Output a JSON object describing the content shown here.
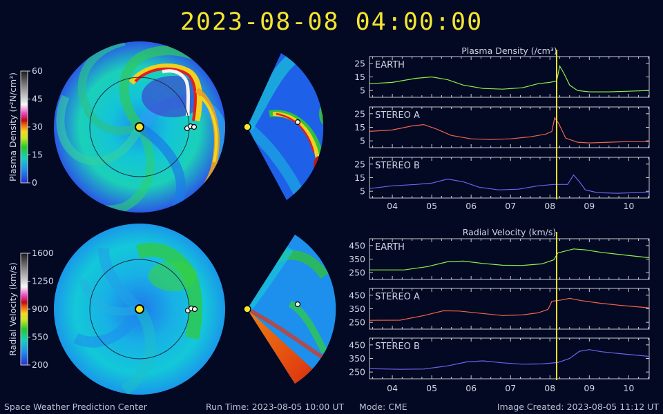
{
  "header": {
    "datetime": "2023-08-08  04:00:00"
  },
  "footer": {
    "org": "Space Weather Prediction Center",
    "run_time": "Run Time: 2023-08-05 10:00 UT",
    "mode": "Mode: CME",
    "created": "Image Created: 2023-08-05 11:12 UT"
  },
  "colorbars": {
    "density": {
      "label": "Plasma Density (r²N/cm³)",
      "ticks": [
        0,
        15,
        30,
        45,
        60
      ],
      "range": [
        0,
        60
      ]
    },
    "velocity": {
      "label": "Radial Velocity (km/s)",
      "ticks": [
        200,
        550,
        900,
        1250,
        1600
      ],
      "range": [
        200,
        1600
      ]
    }
  },
  "colors": {
    "background": "#030923",
    "headline": "#f4e52f",
    "earth_line": "#8ef04a",
    "stereo_a_line": "#f0644a",
    "stereo_b_line": "#6a64f0",
    "current_time_marker": "#f4e52f"
  },
  "chart_data": [
    {
      "type": "line",
      "title": "Plasma Density (/cm³)",
      "x_tick_labels": [
        "04",
        "05",
        "06",
        "07",
        "08",
        "09",
        "10"
      ],
      "x_ticks": [
        4,
        5,
        6,
        7,
        8,
        9,
        10
      ],
      "xlim": [
        3.42,
        10.52
      ],
      "current_time": 8.17,
      "ylim": [
        0,
        30
      ],
      "y_ticks": [
        5,
        15,
        25
      ],
      "panels": [
        {
          "name": "EARTH",
          "color_key": "earth_line",
          "points": [
            [
              3.42,
              10
            ],
            [
              4.0,
              11
            ],
            [
              4.6,
              14
            ],
            [
              5.0,
              15
            ],
            [
              5.4,
              13
            ],
            [
              5.8,
              9
            ],
            [
              6.3,
              6.5
            ],
            [
              6.8,
              6
            ],
            [
              7.3,
              7
            ],
            [
              7.7,
              10
            ],
            [
              8.0,
              11
            ],
            [
              8.17,
              12
            ],
            [
              8.25,
              23
            ],
            [
              8.35,
              18
            ],
            [
              8.5,
              9
            ],
            [
              8.7,
              5
            ],
            [
              9.0,
              4
            ],
            [
              9.5,
              4
            ],
            [
              10.0,
              4.5
            ],
            [
              10.52,
              5
            ]
          ]
        },
        {
          "name": "STEREO A",
          "color_key": "stereo_a_line",
          "points": [
            [
              3.42,
              12
            ],
            [
              4.0,
              13
            ],
            [
              4.5,
              16
            ],
            [
              4.8,
              17
            ],
            [
              5.1,
              14
            ],
            [
              5.5,
              9
            ],
            [
              6.0,
              6.5
            ],
            [
              6.5,
              6
            ],
            [
              7.0,
              6.5
            ],
            [
              7.5,
              8
            ],
            [
              7.9,
              10
            ],
            [
              8.05,
              12
            ],
            [
              8.12,
              22
            ],
            [
              8.22,
              18
            ],
            [
              8.4,
              7
            ],
            [
              8.7,
              4
            ],
            [
              9.0,
              3.5
            ],
            [
              9.5,
              4
            ],
            [
              10.0,
              4.5
            ],
            [
              10.52,
              4.5
            ]
          ]
        },
        {
          "name": "STEREO B",
          "color_key": "stereo_b_line",
          "points": [
            [
              3.42,
              7
            ],
            [
              4.0,
              9
            ],
            [
              4.6,
              10
            ],
            [
              5.0,
              11
            ],
            [
              5.4,
              14
            ],
            [
              5.8,
              12
            ],
            [
              6.2,
              8
            ],
            [
              6.7,
              6
            ],
            [
              7.2,
              6.5
            ],
            [
              7.7,
              9
            ],
            [
              8.1,
              10
            ],
            [
              8.45,
              10
            ],
            [
              8.6,
              17
            ],
            [
              8.75,
              12
            ],
            [
              8.9,
              6
            ],
            [
              9.2,
              4
            ],
            [
              9.7,
              3.5
            ],
            [
              10.2,
              4
            ],
            [
              10.52,
              4.5
            ]
          ]
        }
      ]
    },
    {
      "type": "line",
      "title": "Radial Velocity (km/s)",
      "x_tick_labels": [
        "04",
        "05",
        "06",
        "07",
        "08",
        "09",
        "10"
      ],
      "x_ticks": [
        4,
        5,
        6,
        7,
        8,
        9,
        10
      ],
      "xlim": [
        3.42,
        10.52
      ],
      "current_time": 8.17,
      "ylim": [
        200,
        500
      ],
      "y_ticks": [
        250,
        350,
        450
      ],
      "panels": [
        {
          "name": "EARTH",
          "color_key": "earth_line",
          "points": [
            [
              3.42,
              270
            ],
            [
              4.3,
              270
            ],
            [
              4.9,
              295
            ],
            [
              5.4,
              330
            ],
            [
              5.8,
              335
            ],
            [
              6.3,
              318
            ],
            [
              6.8,
              305
            ],
            [
              7.3,
              303
            ],
            [
              7.8,
              315
            ],
            [
              8.1,
              345
            ],
            [
              8.2,
              395
            ],
            [
              8.4,
              410
            ],
            [
              8.6,
              425
            ],
            [
              8.9,
              418
            ],
            [
              9.3,
              400
            ],
            [
              9.8,
              383
            ],
            [
              10.52,
              360
            ]
          ]
        },
        {
          "name": "STEREO A",
          "color_key": "stereo_a_line",
          "points": [
            [
              3.42,
              265
            ],
            [
              4.2,
              266
            ],
            [
              4.8,
              300
            ],
            [
              5.3,
              335
            ],
            [
              5.7,
              333
            ],
            [
              6.2,
              318
            ],
            [
              6.8,
              300
            ],
            [
              7.3,
              305
            ],
            [
              7.7,
              320
            ],
            [
              7.95,
              345
            ],
            [
              8.05,
              405
            ],
            [
              8.3,
              415
            ],
            [
              8.5,
              427
            ],
            [
              8.8,
              410
            ],
            [
              9.3,
              390
            ],
            [
              9.8,
              375
            ],
            [
              10.52,
              357
            ]
          ]
        },
        {
          "name": "STEREO B",
          "color_key": "stereo_b_line",
          "points": [
            [
              3.42,
              275
            ],
            [
              4.2,
              270
            ],
            [
              4.8,
              272
            ],
            [
              5.4,
              295
            ],
            [
              5.9,
              325
            ],
            [
              6.3,
              332
            ],
            [
              6.8,
              318
            ],
            [
              7.3,
              308
            ],
            [
              7.8,
              310
            ],
            [
              8.2,
              320
            ],
            [
              8.5,
              350
            ],
            [
              8.75,
              403
            ],
            [
              9.0,
              415
            ],
            [
              9.3,
              400
            ],
            [
              9.8,
              385
            ],
            [
              10.52,
              365
            ]
          ]
        }
      ]
    }
  ]
}
